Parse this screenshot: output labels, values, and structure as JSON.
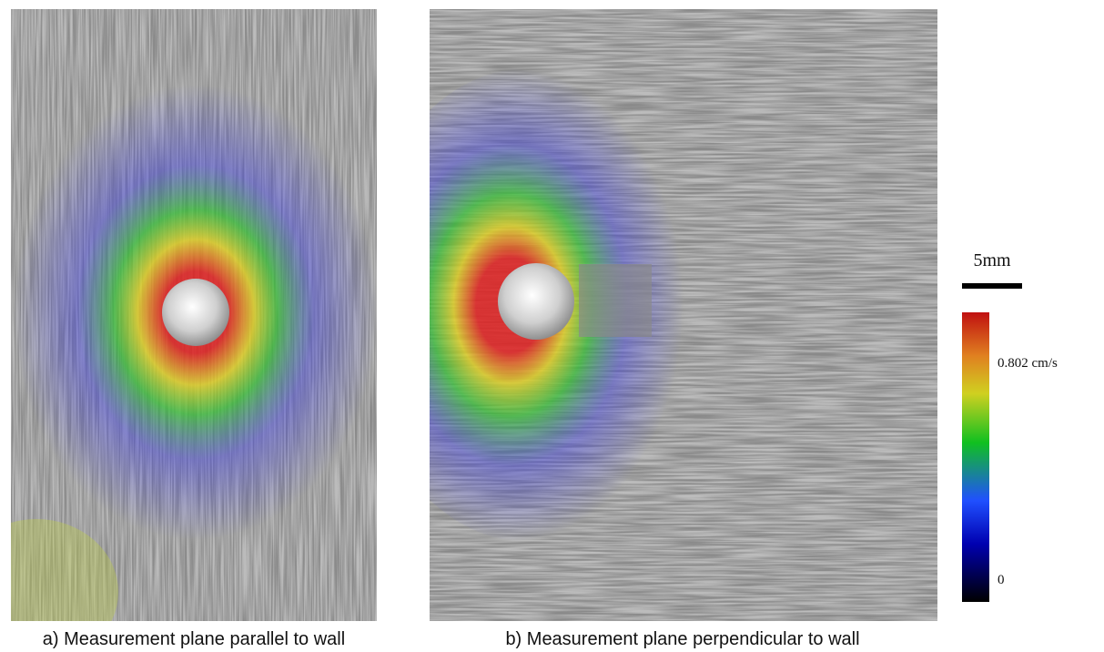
{
  "panels": [
    {
      "caption": "a) Measurement plane parallel to wall"
    },
    {
      "caption": "b) Measurement plane perpendicular to wall"
    }
  ],
  "scale_bar": {
    "label": "5mm"
  },
  "colorbar": {
    "max_label": "0.802 cm/s",
    "min_label": "0"
  }
}
